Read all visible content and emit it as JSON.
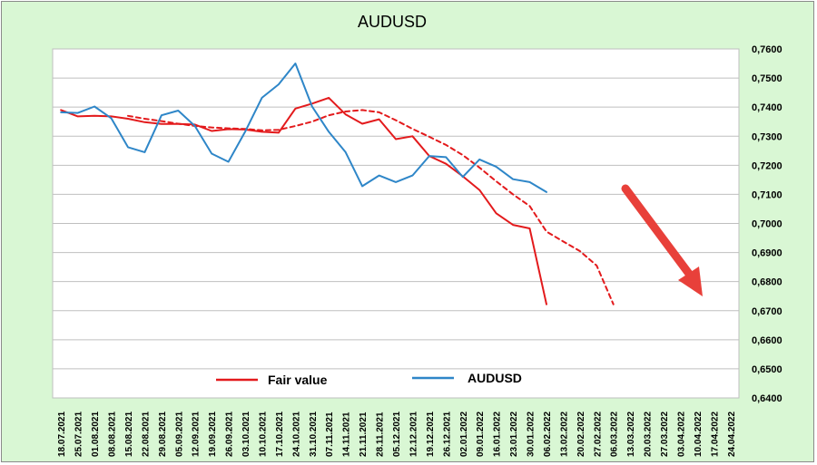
{
  "chart_data": {
    "type": "line",
    "title": "AUDUSD",
    "xlabel": "",
    "ylabel": "",
    "ylim": [
      0.64,
      0.76
    ],
    "y_ticks": [
      "0,6400",
      "0,6500",
      "0,6600",
      "0,6700",
      "0,6800",
      "0,6900",
      "0,7000",
      "0,7100",
      "0,7200",
      "0,7300",
      "0,7400",
      "0,7500",
      "0,7600"
    ],
    "y_axis_side": "right",
    "grid": "horizontal",
    "legend_position": "bottom-left",
    "categories": [
      "18.07.2021",
      "25.07.2021",
      "01.08.2021",
      "08.08.2021",
      "15.08.2021",
      "22.08.2021",
      "29.08.2021",
      "05.09.2021",
      "12.09.2021",
      "19.09.2021",
      "26.09.2021",
      "03.10.2021",
      "10.10.2021",
      "17.10.2021",
      "24.10.2021",
      "31.10.2021",
      "07.11.2021",
      "14.11.2021",
      "21.11.2021",
      "28.11.2021",
      "05.12.2021",
      "12.12.2021",
      "19.12.2021",
      "26.12.2021",
      "02.01.2022",
      "09.01.2022",
      "16.01.2022",
      "23.01.2022",
      "30.01.2022",
      "06.02.2022",
      "13.02.2022",
      "20.02.2022",
      "27.02.2022",
      "06.03.2022",
      "13.03.2022",
      "20.03.2022",
      "27.03.2022",
      "03.04.2022",
      "10.04.2022",
      "17.04.2022",
      "24.04.2022"
    ],
    "series": [
      {
        "name": "Fair value",
        "color": "#e31a1c",
        "style": "solid",
        "values": [
          0.739,
          0.7368,
          0.737,
          0.7368,
          0.736,
          0.7348,
          0.7342,
          0.7342,
          0.734,
          0.7318,
          0.7324,
          0.7323,
          0.7315,
          0.7312,
          0.7395,
          0.7412,
          0.7432,
          0.7375,
          0.7343,
          0.7358,
          0.729,
          0.73,
          0.7232,
          0.7205,
          0.7162,
          0.7115,
          0.7035,
          0.6995,
          0.6983,
          0.6722,
          null,
          null,
          null,
          null,
          null,
          null,
          null,
          null,
          null,
          null,
          null
        ]
      },
      {
        "name": "",
        "color": "#e31a1c",
        "style": "dashed",
        "values": [
          null,
          null,
          null,
          null,
          0.737,
          0.736,
          0.7352,
          0.7343,
          0.7335,
          0.733,
          0.7327,
          0.7325,
          0.732,
          0.7322,
          0.7335,
          0.735,
          0.7372,
          0.7385,
          0.739,
          0.7382,
          0.7355,
          0.7325,
          0.7298,
          0.727,
          0.7235,
          0.7192,
          0.7145,
          0.71,
          0.706,
          0.6972,
          0.6938,
          0.6905,
          0.6855,
          0.6722,
          null,
          null,
          null,
          null,
          null,
          null,
          null
        ]
      },
      {
        "name": "AUDUSD",
        "color": "#2e86c8",
        "style": "solid",
        "values": [
          0.7382,
          0.738,
          0.7402,
          0.7362,
          0.7262,
          0.7245,
          0.7372,
          0.7388,
          0.7335,
          0.724,
          0.7212,
          0.7315,
          0.7432,
          0.7478,
          0.755,
          0.7402,
          0.7315,
          0.7245,
          0.7128,
          0.7165,
          0.7142,
          0.7165,
          0.7232,
          0.7228,
          0.716,
          0.722,
          0.7195,
          0.7152,
          0.7142,
          0.7108,
          null,
          null,
          null,
          null,
          null,
          null,
          null,
          null,
          null,
          null,
          null
        ]
      }
    ],
    "annotations": [
      {
        "type": "arrow",
        "color": "#e8403a",
        "direction": "down-right"
      }
    ]
  }
}
